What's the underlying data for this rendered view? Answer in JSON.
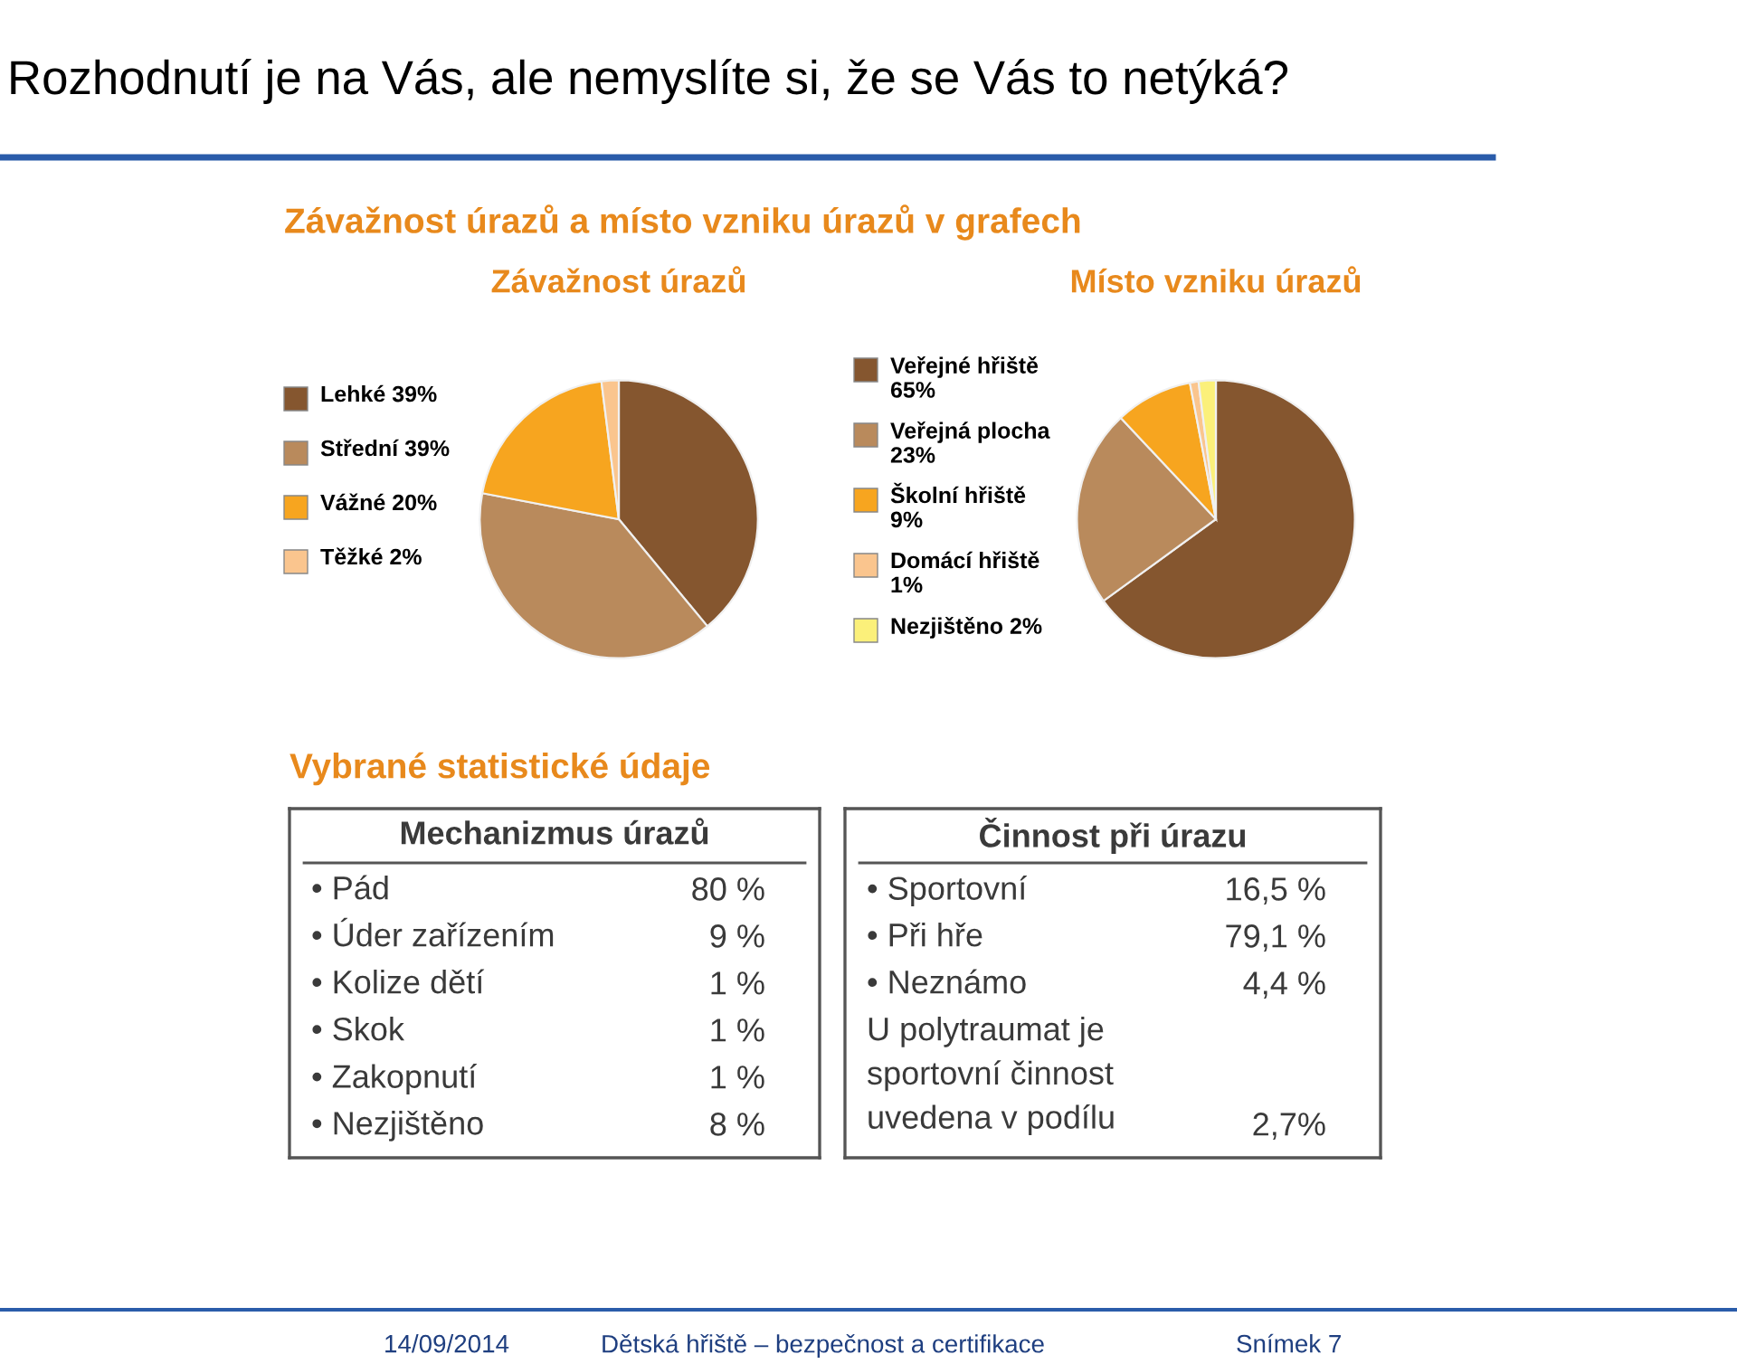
{
  "chart_data": [
    {
      "type": "pie",
      "title": "Závažnost úrazů a místo vzniku úrazů v grafech",
      "subtitle": "Závažnost úrazů",
      "categories": [
        "Lehké",
        "Střední",
        "Vážné",
        "Těžké"
      ],
      "values": [
        39,
        39,
        20,
        2
      ],
      "value_labels": [
        "39%",
        "39%",
        "20%",
        "2%"
      ],
      "colors": [
        "#85562f",
        "#b98a5c",
        "#f7a51f",
        "#fac58e"
      ],
      "legend": "left",
      "annotations": [
        "Rozhodnutí je na Vás, ale nemyslíte si, že se Vás to netýká?",
        "14/09/2014",
        "Dětská hřiště – bezpečnost a certifikace",
        "Snímek 7"
      ]
    },
    {
      "type": "pie",
      "subtitle": "Místo vzniku úrazů",
      "categories": [
        "Veřejné hřiště",
        "Veřejná plocha",
        "Školní hřiště",
        "Domácí hřiště",
        "Nezjištěno"
      ],
      "values": [
        65,
        23,
        9,
        1,
        2
      ],
      "value_labels": [
        "65%",
        "23%",
        "9%",
        "1%",
        "2%"
      ],
      "colors": [
        "#85562f",
        "#b98a5c",
        "#f7a51f",
        "#fac58e",
        "#fbf07a"
      ],
      "legend": "left"
    },
    {
      "type": "other",
      "title": "Vybrané statistické údaje",
      "subtitle": "Mechanizmus úrazů",
      "categories": [
        "• Pád",
        "• Úder zařízením",
        "• Kolize dětí",
        "• Skok",
        "• Zakopnutí",
        "• Nezjištěno"
      ],
      "value_labels": [
        "80 %",
        "9 %",
        "1 %",
        "1 %",
        "1 %",
        "8 %"
      ]
    },
    {
      "type": "other",
      "subtitle": "Činnost při úrazu",
      "categories": [
        "• Sportovní",
        "• Při hře",
        "• Neznámo",
        "U polytraumat je\nsportovní činnost\nuvedena v podílu"
      ],
      "value_labels": [
        "16,5 %",
        "79,1 %",
        "4,4 %",
        "2,7%"
      ]
    }
  ]
}
